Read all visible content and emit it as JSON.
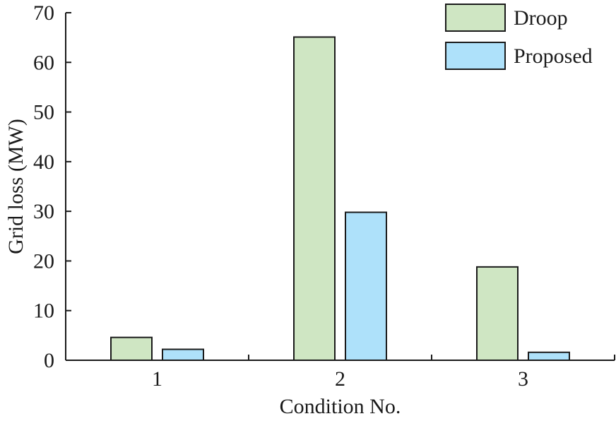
{
  "chart_data": {
    "type": "bar",
    "categories": [
      "1",
      "2",
      "3"
    ],
    "series": [
      {
        "name": "Droop",
        "values": [
          4.6,
          65.1,
          18.8
        ],
        "color": "#cfe6c3"
      },
      {
        "name": "Proposed",
        "values": [
          2.2,
          29.8,
          1.6
        ],
        "color": "#aee1fa"
      }
    ],
    "xlabel": "Condition No.",
    "ylabel": "Grid loss (MW)",
    "ylim": [
      0,
      70
    ],
    "yticks": [
      0,
      10,
      20,
      30,
      40,
      50,
      60,
      70
    ],
    "grid": false,
    "legend_position": "top-right"
  }
}
